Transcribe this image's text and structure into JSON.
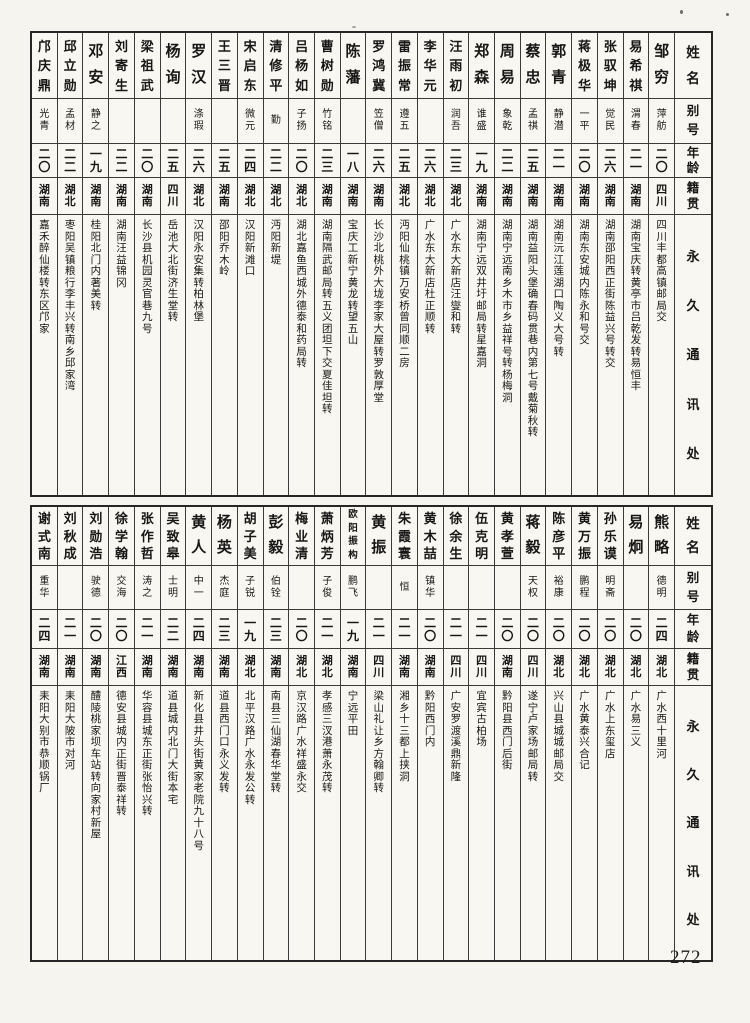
{
  "page": {
    "number": "272"
  },
  "column_headers": {
    "name": "姓名",
    "alias": "别号",
    "age": "年龄",
    "origin": "籍贯",
    "address": "永久通讯处"
  },
  "tables": [
    {
      "id": "top",
      "persons": [
        {
          "name": "邹穷",
          "alias": "萍舫",
          "age": "二〇",
          "origin": "四川",
          "address": "四川丰都高镇邮局交"
        },
        {
          "name": "易希祺",
          "alias": "渭春",
          "age": "二一",
          "origin": "湖南",
          "address": "湖南宝庆转黄亭市吕乾发转易恒丰"
        },
        {
          "name": "张驭坤",
          "alias": "觉民",
          "age": "二六",
          "origin": "湖南",
          "address": "湖南邵阳西正街陈益兴号转交"
        },
        {
          "name": "蒋极华",
          "alias": "一平",
          "age": "二〇",
          "origin": "湖南",
          "address": "湖南东安城内陈永和号交"
        },
        {
          "name": "郭青",
          "alias": "静潜",
          "age": "二一",
          "origin": "湖南",
          "address": "湖南沅江莲湖口陶义大号转"
        },
        {
          "name": "蔡忠",
          "alias": "孟祺",
          "age": "二五",
          "origin": "湖南",
          "address": "湖南益阳头堡确春码贯巷内第七号戴菊秋转"
        },
        {
          "name": "周易",
          "alias": "象乾",
          "age": "二二",
          "origin": "湖南",
          "address": "湖南宁远南乡木市乡益祥号转杨梅洞"
        },
        {
          "name": "郑森",
          "alias": "谁盛",
          "age": "一九",
          "origin": "湖南",
          "address": "湖南宁远双井圩邮局转星嘉洞"
        },
        {
          "name": "汪雨初",
          "alias": "润吾",
          "age": "二三",
          "origin": "湖北",
          "address": "广水东大新店汪燮和转"
        },
        {
          "name": "李华元",
          "alias": "",
          "age": "二六",
          "origin": "湖北",
          "address": "广水东大新店杜正顺转"
        },
        {
          "name": "雷振常",
          "alias": "遵五",
          "age": "二五",
          "origin": "湖北",
          "address": "沔阳仙桃镇万安桥曾同顺二房"
        },
        {
          "name": "罗鸿冀",
          "alias": "笠僧",
          "age": "二六",
          "origin": "湖南",
          "address": "长沙北桃外大垅李家大屋转罗敦厚堂"
        },
        {
          "name": "陈藩",
          "alias": "",
          "age": "一八",
          "origin": "湖南",
          "address": "宝庆工新宁黄龙转望五山"
        },
        {
          "name": "曹树勋",
          "alias": "竹铭",
          "age": "二三",
          "origin": "湖南",
          "address": "湖南隔武邮局转五义团坦下交夏佳坦转"
        },
        {
          "name": "吕杨如",
          "alias": "子扬",
          "age": "二〇",
          "origin": "湖北",
          "address": "湖北嘉鱼西城外德泰和药局转"
        },
        {
          "name": "清修平",
          "alias": "勤",
          "age": "二二",
          "origin": "湖北",
          "address": "沔阳新堤"
        },
        {
          "name": "宋启东",
          "alias": "微元",
          "age": "二四",
          "origin": "湖北",
          "address": "汉阳新滩口"
        },
        {
          "name": "王三晋",
          "alias": "",
          "age": "二五",
          "origin": "湖南",
          "address": "邵阳乔木岭"
        },
        {
          "name": "罗汉",
          "alias": "涤瑕",
          "age": "二六",
          "origin": "湖北",
          "address": "汉阳永安集转柏林堡"
        },
        {
          "name": "杨询",
          "alias": "",
          "age": "二五",
          "origin": "四川",
          "address": "岳池大北街济生堂转"
        },
        {
          "name": "梁祖武",
          "alias": "",
          "age": "二〇",
          "origin": "湖南",
          "address": "长沙县机园灵官巷九号"
        },
        {
          "name": "刘寄生",
          "alias": "",
          "age": "二二",
          "origin": "湖南",
          "address": "湖南汪益锦冈"
        },
        {
          "name": "邓安",
          "alias": "静之",
          "age": "一九",
          "origin": "湖南",
          "address": "桂阳北门内著美转"
        },
        {
          "name": "邱立勋",
          "alias": "孟材",
          "age": "二二",
          "origin": "湖北",
          "address": "枣阳吴镇粮行李丰兴转南乡邱家湾"
        },
        {
          "name": "邝庆鼎",
          "alias": "光青",
          "age": "二〇",
          "origin": "湖南",
          "address": "嘉禾醉仙楼转东区邝家"
        }
      ]
    },
    {
      "id": "bottom",
      "persons": [
        {
          "name": "熊略",
          "alias": "德明",
          "age": "二四",
          "origin": "湖北",
          "address": "广水西十里河"
        },
        {
          "name": "易炯",
          "alias": "",
          "age": "二〇",
          "origin": "湖北",
          "address": "广水易三义"
        },
        {
          "name": "孙乐谟",
          "alias": "明斋",
          "age": "二〇",
          "origin": "湖北",
          "address": "广水上东玺店"
        },
        {
          "name": "黄万振",
          "alias": "鹏程",
          "age": "二〇",
          "origin": "湖北",
          "address": "广水黄泰兴合记"
        },
        {
          "name": "陈彦平",
          "alias": "裕康",
          "age": "二〇",
          "origin": "湖北",
          "address": "兴山县城城邮局交"
        },
        {
          "name": "蒋毅",
          "alias": "天权",
          "age": "二〇",
          "origin": "四川",
          "address": "遂宁卢家场邮局转"
        },
        {
          "name": "黄孝萱",
          "alias": "",
          "age": "二〇",
          "origin": "湖南",
          "address": "黔阳县西门后街"
        },
        {
          "name": "伍克明",
          "alias": "",
          "age": "二一",
          "origin": "四川",
          "address": "宜宾古柏场"
        },
        {
          "name": "徐余生",
          "alias": "",
          "age": "二一",
          "origin": "四川",
          "address": "广安罗渡溪鼎新隆"
        },
        {
          "name": "黄木喆",
          "alias": "镇华",
          "age": "二〇",
          "origin": "湖南",
          "address": "黔阳西门内"
        },
        {
          "name": "朱霞寰",
          "alias": "恒",
          "age": "二一",
          "origin": "湖南",
          "address": "湘乡十三都上挟洞"
        },
        {
          "name": "黄振",
          "alias": "",
          "age": "二一",
          "origin": "四川",
          "address": "梁山礼让乡方翰卿转"
        },
        {
          "name": "欧阳振构",
          "alias": "鹏飞",
          "age": "一九",
          "origin": "湖南",
          "address": "宁远平田"
        },
        {
          "name": "萧炳芳",
          "alias": "子俊",
          "age": "二一",
          "origin": "湖北",
          "address": "孝感三汊港萧永茂转"
        },
        {
          "name": "梅业清",
          "alias": "",
          "age": "二〇",
          "origin": "湖北",
          "address": "京汉路广水祥盛永交"
        },
        {
          "name": "彭毅",
          "alias": "伯铨",
          "age": "二三",
          "origin": "湖南",
          "address": "南县三仙湖春华堂转"
        },
        {
          "name": "胡子美",
          "alias": "子锐",
          "age": "一九",
          "origin": "湖北",
          "address": "北平汉路广水永发公转"
        },
        {
          "name": "杨英",
          "alias": "杰庭",
          "age": "二三",
          "origin": "湖南",
          "address": "道县西门口永义发转"
        },
        {
          "name": "黄人",
          "alias": "中一",
          "age": "二四",
          "origin": "湖南",
          "address": "新化县井头街黄家老院九十八号"
        },
        {
          "name": "吴致皋",
          "alias": "士明",
          "age": "二二",
          "origin": "湖南",
          "address": "道县城内北门大街本宅"
        },
        {
          "name": "张作哲",
          "alias": "涛之",
          "age": "二一",
          "origin": "湖南",
          "address": "华容县城东正街张怡兴转"
        },
        {
          "name": "徐学翰",
          "alias": "交海",
          "age": "二〇",
          "origin": "江西",
          "address": "德安县城内正街晋泰祥转"
        },
        {
          "name": "刘勋浩",
          "alias": "驶德",
          "age": "二〇",
          "origin": "湖南",
          "address": "醴陵桃家坝车站转向家村新屋"
        },
        {
          "name": "刘秋成",
          "alias": "",
          "age": "二一",
          "origin": "湖南",
          "address": "耒阳大陂市对河"
        },
        {
          "name": "谢式南",
          "alias": "重华",
          "age": "二四",
          "origin": "湖南",
          "address": "耒阳大别市恭顺锅厂"
        }
      ]
    }
  ]
}
